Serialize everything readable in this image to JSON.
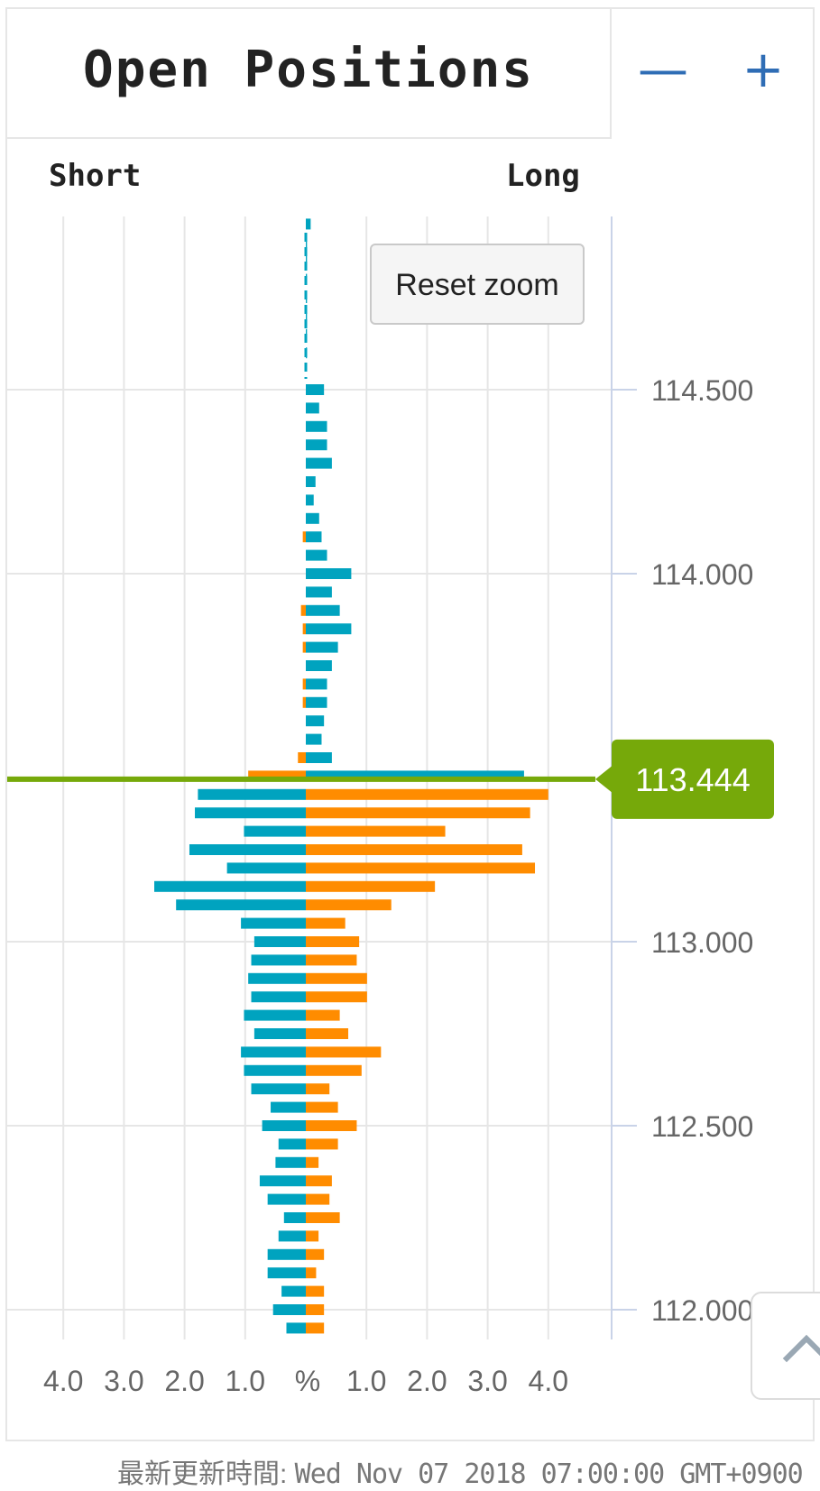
{
  "header": {
    "title": "Open Positions",
    "zoom_out_label": "—",
    "zoom_in_label": "+"
  },
  "labels": {
    "short": "Short",
    "long": "Long",
    "reset_zoom": "Reset zoom"
  },
  "footer": {
    "prefix": "最新更新時間: ",
    "timestamp": "Wed Nov 07 2018 07:00:00 GMT+0900"
  },
  "colors": {
    "short": "#00a3bf",
    "long": "#ff8c00",
    "current_price": "#76a90a",
    "grid": "#e6e6e6",
    "price_axis": "#c9d3e8",
    "text": "#666666"
  },
  "chart_data": {
    "type": "bar",
    "orientation": "horizontal-butterfly",
    "x_axis": {
      "ticks_left": [
        "4.0",
        "3.0",
        "2.0",
        "1.0"
      ],
      "center": "%",
      "ticks_right": [
        "1.0",
        "2.0",
        "3.0",
        "4.0"
      ],
      "range": [
        -5,
        5
      ]
    },
    "y_axis": {
      "ticks": [
        "114.500",
        "114.000",
        "113.000",
        "112.500",
        "112.000"
      ],
      "range": [
        111.95,
        114.97
      ]
    },
    "current_price": {
      "label": "113.444",
      "value": 113.444
    },
    "price_step": 0.05,
    "series": [
      {
        "side": "long-panel",
        "bars": [
          {
            "price": 114.95,
            "short": 0.0,
            "long": 0.08
          },
          {
            "price": 114.9,
            "short": 0.0,
            "long": 0.02
          },
          {
            "price": 114.85,
            "short": 0.0,
            "long": 0.02
          },
          {
            "price": 114.8,
            "short": 0.0,
            "long": 0.02
          },
          {
            "price": 114.75,
            "short": 0.0,
            "long": 0.02
          },
          {
            "price": 114.7,
            "short": 0.0,
            "long": 0.02
          },
          {
            "price": 114.65,
            "short": 0.0,
            "long": 0.02
          },
          {
            "price": 114.6,
            "short": 0.0,
            "long": 0.02
          },
          {
            "price": 114.5,
            "short": 0.0,
            "long": 0.3
          },
          {
            "price": 114.45,
            "short": 0.0,
            "long": 0.22
          },
          {
            "price": 114.4,
            "short": 0.0,
            "long": 0.35
          },
          {
            "price": 114.35,
            "short": 0.0,
            "long": 0.35
          },
          {
            "price": 114.3,
            "short": 0.0,
            "long": 0.43
          },
          {
            "price": 114.25,
            "short": 0.0,
            "long": 0.16
          },
          {
            "price": 114.2,
            "short": 0.0,
            "long": 0.13
          },
          {
            "price": 114.15,
            "short": 0.0,
            "long": 0.22
          },
          {
            "price": 114.1,
            "short": 0.05,
            "long": 0.26
          },
          {
            "price": 114.05,
            "short": 0.0,
            "long": 0.35
          },
          {
            "price": 114.0,
            "short": 0.0,
            "long": 0.75
          },
          {
            "price": 113.95,
            "short": 0.0,
            "long": 0.43
          },
          {
            "price": 113.9,
            "short": 0.08,
            "long": 0.56
          },
          {
            "price": 113.85,
            "short": 0.05,
            "long": 0.75
          },
          {
            "price": 113.8,
            "short": 0.05,
            "long": 0.53
          },
          {
            "price": 113.75,
            "short": 0.0,
            "long": 0.43
          },
          {
            "price": 113.7,
            "short": 0.05,
            "long": 0.35
          },
          {
            "price": 113.65,
            "short": 0.05,
            "long": 0.35
          },
          {
            "price": 113.6,
            "short": 0.0,
            "long": 0.3
          },
          {
            "price": 113.55,
            "short": 0.0,
            "long": 0.26
          },
          {
            "price": 113.5,
            "short": 0.13,
            "long": 0.43
          },
          {
            "price": 113.45,
            "short": 0.95,
            "long": 3.6
          }
        ]
      },
      {
        "side": "short-panel",
        "bars": [
          {
            "price": 113.4,
            "short": 1.78,
            "long": 4.0
          },
          {
            "price": 113.35,
            "short": 1.83,
            "long": 3.7
          },
          {
            "price": 113.3,
            "short": 1.02,
            "long": 2.3
          },
          {
            "price": 113.25,
            "short": 1.92,
            "long": 3.57
          },
          {
            "price": 113.2,
            "short": 1.3,
            "long": 3.78
          },
          {
            "price": 113.15,
            "short": 2.5,
            "long": 2.13
          },
          {
            "price": 113.1,
            "short": 2.14,
            "long": 1.41
          },
          {
            "price": 113.05,
            "short": 1.07,
            "long": 0.65
          },
          {
            "price": 113.0,
            "short": 0.85,
            "long": 0.88
          },
          {
            "price": 112.95,
            "short": 0.9,
            "long": 0.84
          },
          {
            "price": 112.9,
            "short": 0.95,
            "long": 1.01
          },
          {
            "price": 112.85,
            "short": 0.9,
            "long": 1.01
          },
          {
            "price": 112.8,
            "short": 1.02,
            "long": 0.56
          },
          {
            "price": 112.75,
            "short": 0.85,
            "long": 0.7
          },
          {
            "price": 112.7,
            "short": 1.07,
            "long": 1.24
          },
          {
            "price": 112.65,
            "short": 1.02,
            "long": 0.92
          },
          {
            "price": 112.6,
            "short": 0.9,
            "long": 0.39
          },
          {
            "price": 112.55,
            "short": 0.58,
            "long": 0.53
          },
          {
            "price": 112.5,
            "short": 0.72,
            "long": 0.84
          },
          {
            "price": 112.45,
            "short": 0.45,
            "long": 0.53
          },
          {
            "price": 112.4,
            "short": 0.5,
            "long": 0.21
          },
          {
            "price": 112.35,
            "short": 0.76,
            "long": 0.43
          },
          {
            "price": 112.3,
            "short": 0.63,
            "long": 0.39
          },
          {
            "price": 112.25,
            "short": 0.36,
            "long": 0.56
          },
          {
            "price": 112.2,
            "short": 0.45,
            "long": 0.21
          },
          {
            "price": 112.15,
            "short": 0.63,
            "long": 0.3
          },
          {
            "price": 112.1,
            "short": 0.63,
            "long": 0.17
          },
          {
            "price": 112.05,
            "short": 0.4,
            "long": 0.3
          },
          {
            "price": 112.0,
            "short": 0.54,
            "long": 0.3
          },
          {
            "price": 111.95,
            "short": 0.32,
            "long": 0.3
          }
        ]
      }
    ]
  }
}
